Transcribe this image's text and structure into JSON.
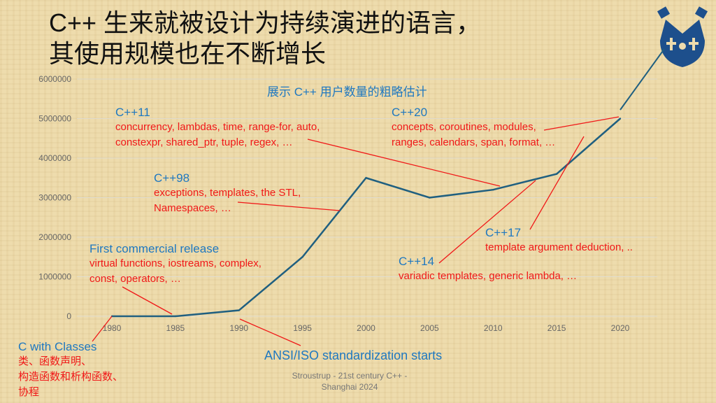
{
  "title": {
    "line1": "C++ 生来就被设计为持续演进的语言，",
    "line2": "其使用规模也在不断增长"
  },
  "footer": {
    "line1": "Stroustrup - 21st century C++ -",
    "line2": "Shanghai 2024"
  },
  "logo": "crown-logo",
  "annotations": {
    "cwc": {
      "title": "C with Classes",
      "l1": "类、函数声明、",
      "l2": "构造函数和析构函数、",
      "l3": "协程"
    },
    "fcr": {
      "title": "First commercial release",
      "l1": "virtual functions, iostreams, complex,",
      "l2": "const, operators, …"
    },
    "ansi": {
      "title": "ANSI/ISO standardization starts"
    },
    "cpp98": {
      "title": "C++98",
      "l1": "exceptions, templates, the STL,",
      "l2": "Namespaces, …"
    },
    "cpp11": {
      "title": "C++11",
      "l1": "concurrency, lambdas, time, range-for, auto,",
      "l2": "constexpr, shared_ptr, tuple, regex, …"
    },
    "cpp14": {
      "title": "C++14",
      "l1": "variadic templates, generic lambda, …"
    },
    "cpp17": {
      "title": "C++17",
      "l1": "template argument deduction, .."
    },
    "cpp20": {
      "title": "C++20",
      "l1": "concepts, coroutines, modules,",
      "l2": "ranges, calendars, span, format, …"
    }
  },
  "chart_data": {
    "type": "line",
    "title": "展示 C++ 用户数量的粗略估计",
    "x": [
      1980,
      1985,
      1990,
      1995,
      2000,
      2005,
      2010,
      2015,
      2020
    ],
    "values": [
      0,
      0,
      150000,
      1500000,
      3500000,
      3000000,
      3200000,
      3600000,
      5000000
    ],
    "xticks": [
      "1980",
      "1985",
      "1990",
      "1995",
      "2000",
      "2005",
      "2010",
      "2015",
      "2020"
    ],
    "yticks": [
      "0",
      "1000000",
      "2000000",
      "3000000",
      "4000000",
      "5000000",
      "6000000"
    ],
    "ylim": [
      0,
      6000000
    ],
    "xlim": [
      1980,
      2020
    ],
    "grid": true,
    "line_color": "#1f5f80"
  }
}
